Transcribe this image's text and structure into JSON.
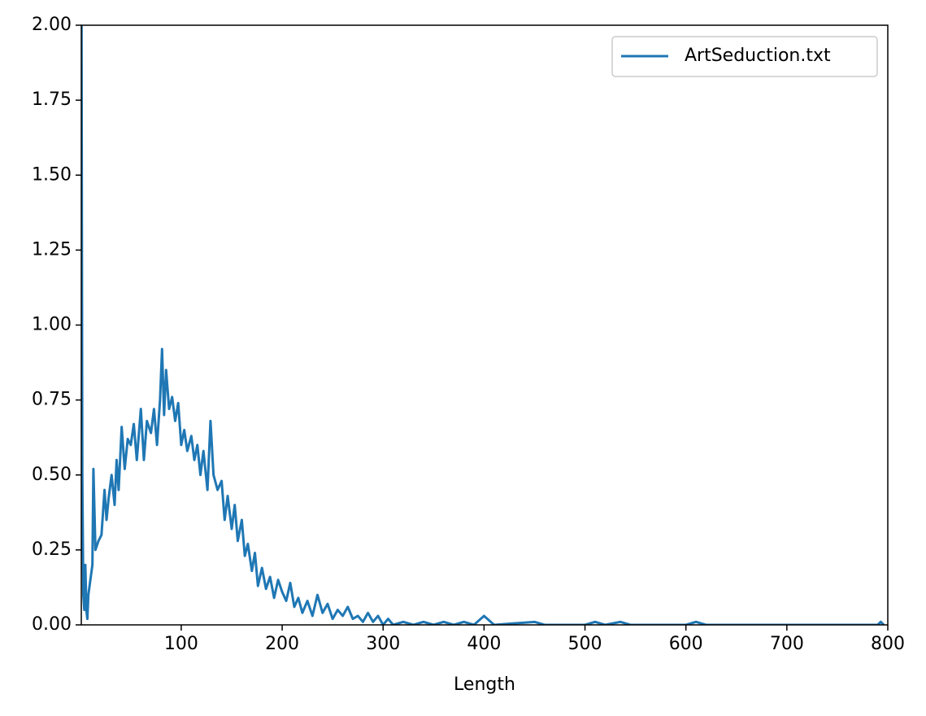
{
  "chart_data": {
    "type": "line",
    "xlabel": "Length",
    "legend": "upper right",
    "series": [
      {
        "name": "ArtSeduction.txt",
        "color": "#1f77b4",
        "x": [
          1,
          2,
          3,
          4,
          5,
          6,
          7,
          8,
          10,
          12,
          13,
          15,
          18,
          21,
          24,
          26,
          28,
          31,
          34,
          36,
          38,
          41,
          44,
          47,
          50,
          53,
          56,
          60,
          63,
          66,
          70,
          73,
          76,
          79,
          81,
          83,
          85,
          88,
          91,
          94,
          97,
          100,
          103,
          106,
          110,
          113,
          116,
          119,
          122,
          126,
          129,
          132,
          136,
          140,
          143,
          146,
          150,
          153,
          156,
          160,
          163,
          166,
          170,
          173,
          176,
          180,
          184,
          188,
          192,
          196,
          200,
          204,
          208,
          212,
          216,
          220,
          225,
          230,
          235,
          240,
          245,
          250,
          255,
          260,
          265,
          270,
          275,
          280,
          285,
          290,
          295,
          300,
          305,
          310,
          320,
          330,
          340,
          350,
          360,
          370,
          380,
          390,
          400,
          410,
          450,
          460,
          500,
          510,
          520,
          535,
          545,
          600,
          610,
          620,
          700,
          750,
          790,
          793,
          796
        ],
        "values": [
          2.5,
          0.5,
          0.1,
          0.05,
          0.2,
          0.05,
          0.02,
          0.1,
          0.15,
          0.2,
          0.52,
          0.25,
          0.28,
          0.3,
          0.45,
          0.35,
          0.42,
          0.5,
          0.4,
          0.55,
          0.45,
          0.66,
          0.52,
          0.62,
          0.6,
          0.67,
          0.55,
          0.72,
          0.55,
          0.68,
          0.64,
          0.72,
          0.6,
          0.75,
          0.92,
          0.7,
          0.85,
          0.72,
          0.76,
          0.68,
          0.74,
          0.6,
          0.65,
          0.58,
          0.63,
          0.55,
          0.6,
          0.5,
          0.58,
          0.45,
          0.68,
          0.5,
          0.45,
          0.48,
          0.35,
          0.43,
          0.32,
          0.4,
          0.28,
          0.35,
          0.23,
          0.27,
          0.18,
          0.24,
          0.13,
          0.19,
          0.12,
          0.16,
          0.09,
          0.15,
          0.11,
          0.08,
          0.14,
          0.06,
          0.09,
          0.04,
          0.08,
          0.03,
          0.1,
          0.04,
          0.07,
          0.02,
          0.05,
          0.03,
          0.06,
          0.02,
          0.03,
          0.01,
          0.04,
          0.01,
          0.03,
          0,
          0.02,
          0,
          0.01,
          0,
          0.01,
          0,
          0.01,
          0,
          0.01,
          0,
          0.03,
          0,
          0.01,
          0,
          0,
          0.01,
          0,
          0.01,
          0,
          0,
          0.01,
          0,
          0,
          0,
          0,
          0.01,
          0
        ]
      }
    ],
    "xlim": [
      1,
      800
    ],
    "xticks": [
      100,
      200,
      300,
      400,
      500,
      600,
      700,
      800
    ],
    "ylim": [
      0,
      2
    ],
    "yticks": [
      {
        "value": 0,
        "label": "0.00"
      },
      {
        "value": 0.25,
        "label": "0.25"
      },
      {
        "value": 0.5,
        "label": "0.50"
      },
      {
        "value": 0.75,
        "label": "0.75"
      },
      {
        "value": 1,
        "label": "1.00"
      },
      {
        "value": 1.25,
        "label": "1.25"
      },
      {
        "value": 1.5,
        "label": "1.50"
      },
      {
        "value": 1.75,
        "label": "1.75"
      },
      {
        "value": 2,
        "label": "2.00"
      }
    ]
  }
}
